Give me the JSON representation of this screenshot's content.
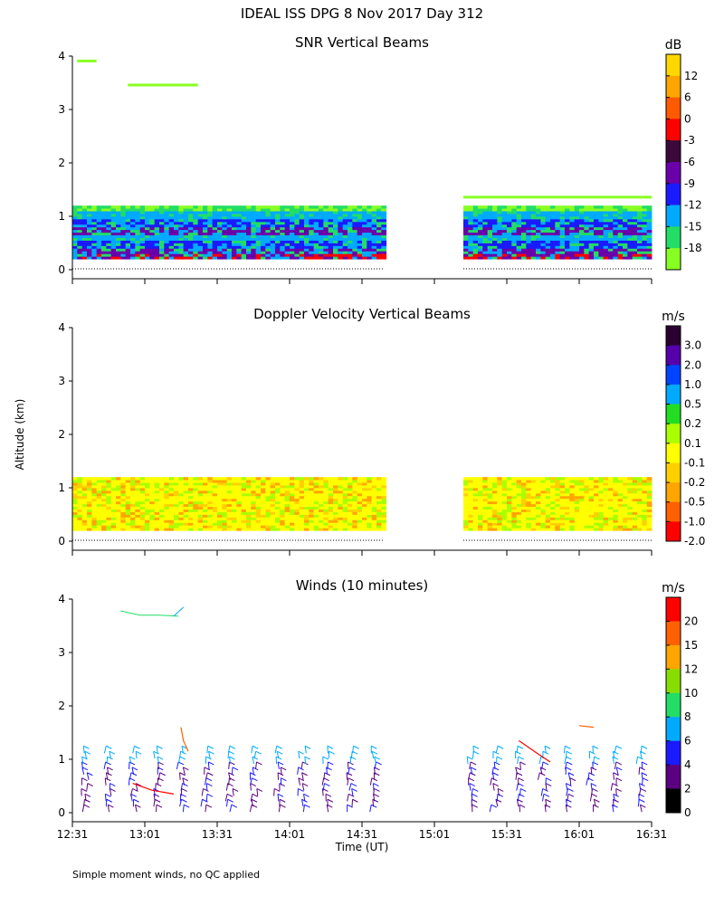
{
  "figure": {
    "title": "IDEAL ISS DPG    8 Nov 2017 Day 312",
    "y_axis_label": "Altitude (km)",
    "x_axis_label": "Time (UT)",
    "footnote": "Simple moment winds, no QC applied"
  },
  "chart_data": [
    {
      "type": "heatmap",
      "title": "SNR Vertical Beams",
      "x_ticks": [
        "12:31",
        "13:01",
        "13:31",
        "14:01",
        "14:31",
        "15:01",
        "15:31",
        "16:01",
        "16:31"
      ],
      "x_range_minutes": [
        0,
        240
      ],
      "ylim": [
        0,
        4
      ],
      "y_ticks": [
        0,
        1,
        2,
        3,
        4
      ],
      "grid": false,
      "colorbar": {
        "unit": "dB",
        "labels": [
          "12",
          "6",
          "0",
          "-3",
          "-6",
          "-9",
          "-12",
          "-15",
          "-18"
        ],
        "colors": [
          "#ffd700",
          "#ffa500",
          "#ff5a00",
          "#ff0000",
          "#3a0a3a",
          "#6a00aa",
          "#1a1aff",
          "#00aaff",
          "#22dd66",
          "#88ff22"
        ]
      },
      "data_segments": [
        {
          "t_start": 0,
          "t_end": 129,
          "alt_bottom": 0.2,
          "alt_top": 1.2,
          "dominant_snr_db": [
            -9,
            -12,
            -15
          ]
        },
        {
          "t_start": 162,
          "t_end": 240,
          "alt_bottom": 0.2,
          "alt_top": 1.2,
          "dominant_snr_db": [
            -9,
            -12,
            -15
          ]
        }
      ],
      "sparse_echoes": [
        {
          "t_start": 2,
          "t_end": 10,
          "alt": 3.9
        },
        {
          "t_start": 23,
          "t_end": 52,
          "alt": 3.45
        },
        {
          "t_start": 162,
          "t_end": 240,
          "alt": 1.35
        }
      ]
    },
    {
      "type": "heatmap",
      "title": "Doppler Velocity Vertical Beams",
      "x_ticks": [
        "12:31",
        "13:01",
        "13:31",
        "14:01",
        "14:31",
        "15:01",
        "15:31",
        "16:01",
        "16:31"
      ],
      "ylim": [
        0,
        4
      ],
      "y_ticks": [
        0,
        1,
        2,
        3,
        4
      ],
      "colorbar": {
        "unit": "m/s",
        "labels": [
          "3.0",
          "2.0",
          "1.0",
          "0.5",
          "0.2",
          "0.1",
          "-0.1",
          "-0.2",
          "-0.5",
          "-1.0",
          "-2.0"
        ],
        "colors": [
          "#2a0030",
          "#5500aa",
          "#0044ff",
          "#00aaff",
          "#22dd22",
          "#aaff00",
          "#ffff00",
          "#ffd000",
          "#ffa500",
          "#ff6000",
          "#ff0000"
        ]
      },
      "data_segments": [
        {
          "t_start": 0,
          "t_end": 129,
          "alt_bottom": 0.2,
          "alt_top": 1.2,
          "dominant_velocity_ms": [
            -0.1,
            0.1
          ]
        },
        {
          "t_start": 162,
          "t_end": 240,
          "alt_bottom": 0.2,
          "alt_top": 1.2,
          "dominant_velocity_ms": [
            -0.1
          ]
        }
      ]
    },
    {
      "type": "scatter",
      "title": "Winds (10 minutes)",
      "x_ticks": [
        "12:31",
        "13:01",
        "13:31",
        "14:01",
        "14:31",
        "15:01",
        "15:31",
        "16:01",
        "16:31"
      ],
      "xlabel": "Time (UT)",
      "ylim": [
        0,
        4
      ],
      "y_ticks": [
        0,
        1,
        2,
        3,
        4
      ],
      "colorbar": {
        "unit": "m/s",
        "labels": [
          "20",
          "15",
          "12",
          "10",
          "8",
          "6",
          "4",
          "2",
          "0"
        ],
        "colors": [
          "#ff0000",
          "#ff6000",
          "#ffa500",
          "#88dd00",
          "#22dd66",
          "#00aaff",
          "#1a1aff",
          "#5a0080",
          "#000000"
        ]
      },
      "profile_times_minutes": [
        5,
        15,
        25,
        35,
        45,
        55,
        65,
        75,
        85,
        95,
        105,
        115,
        125,
        165,
        175,
        185,
        195,
        205,
        215,
        225,
        235
      ],
      "dominant_speed_ms": [
        2,
        4
      ]
    }
  ]
}
